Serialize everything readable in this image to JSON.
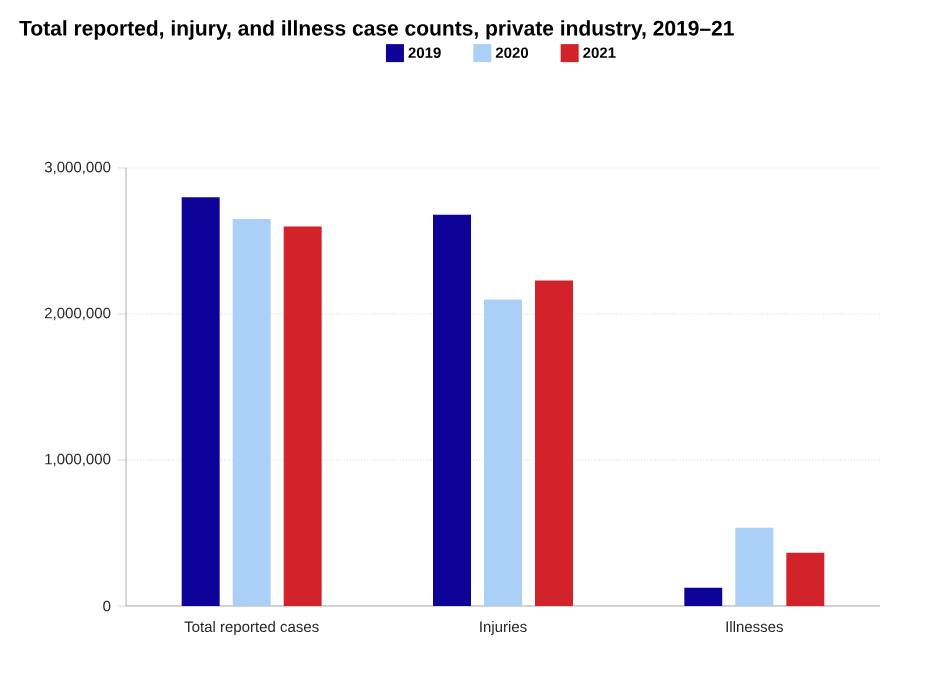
{
  "chart_data": {
    "type": "bar",
    "title": "Total reported, injury, and illness case counts, private industry, 2019–21",
    "categories": [
      "Total reported cases",
      "Injuries",
      "Illnesses"
    ],
    "series": [
      {
        "name": "2019",
        "color": "#0d0399",
        "values": [
          2800000,
          2680000,
          125000
        ]
      },
      {
        "name": "2020",
        "color": "#abd0f8",
        "values": [
          2650000,
          2100000,
          535000
        ]
      },
      {
        "name": "2021",
        "color": "#d2232a",
        "values": [
          2600000,
          2230000,
          365000
        ]
      }
    ],
    "ylim": [
      0,
      3000000
    ],
    "yticks": [
      0,
      {
        "value": 1000000,
        "label": "1,000,000"
      },
      {
        "value": 2000000,
        "label": "2,000,000"
      },
      {
        "value": 3000000,
        "label": "3,000,000"
      }
    ],
    "grid": "y",
    "legend": "top"
  }
}
